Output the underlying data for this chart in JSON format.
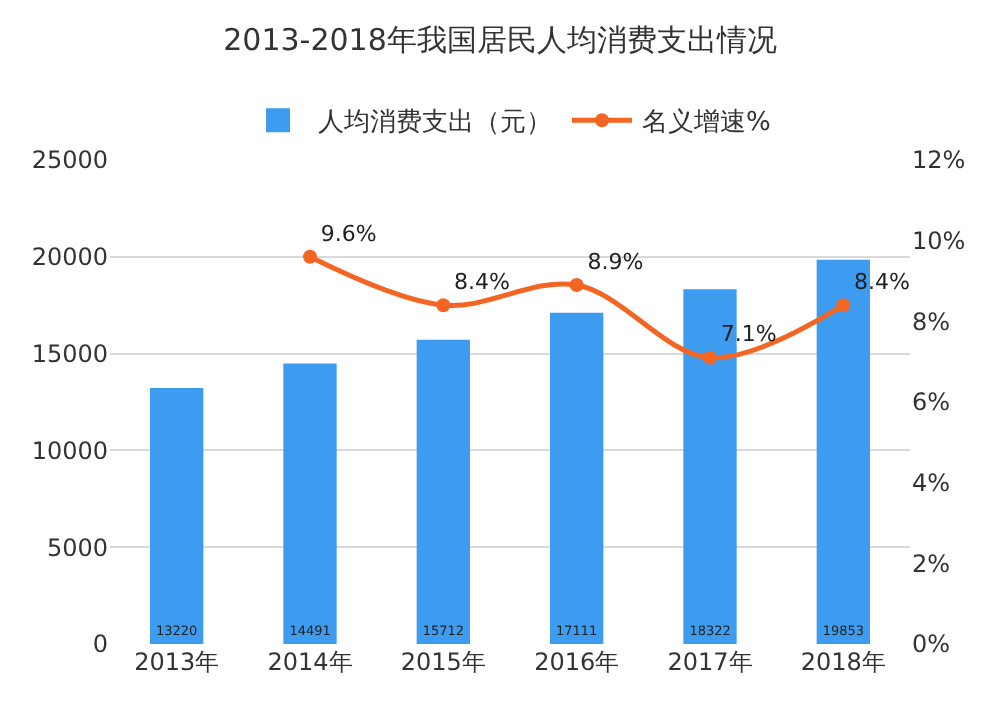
{
  "chart_data": {
    "type": "bar",
    "title": "2013-2018年我国居民人均消费支出情况",
    "categories": [
      "2013年",
      "2014年",
      "2015年",
      "2016年",
      "2017年",
      "2018年"
    ],
    "series": [
      {
        "name": "人均消费支出（元）",
        "color": "#3d9cf0",
        "values": [
          13220,
          14491,
          15712,
          17111,
          18322,
          19853
        ],
        "value_labels": [
          "13220",
          "14491",
          "15712",
          "17111",
          "18322",
          "19853"
        ]
      },
      {
        "name": "名义增速%",
        "type": "line",
        "axis": "y2",
        "color": "#f26522",
        "marker": "circle",
        "values": [
          null,
          9.6,
          8.4,
          8.9,
          7.1,
          8.4
        ],
        "value_labels": [
          null,
          "9.6%",
          "8.4%",
          "8.9%",
          "7.1%",
          "8.4%"
        ]
      }
    ],
    "ylim": [
      0,
      25000
    ],
    "yticks": [
      0,
      5000,
      10000,
      15000,
      20000,
      25000
    ],
    "y2lim": [
      0,
      12
    ],
    "y2ticks": [
      {
        "value": 0,
        "label": "0%"
      },
      {
        "value": 2,
        "label": "2%"
      },
      {
        "value": 4,
        "label": "4%"
      },
      {
        "value": 6,
        "label": "6%"
      },
      {
        "value": 8,
        "label": "8%"
      },
      {
        "value": 10,
        "label": "10%"
      },
      {
        "value": 12,
        "label": "12%"
      }
    ],
    "grid": "y",
    "legend": "top"
  }
}
